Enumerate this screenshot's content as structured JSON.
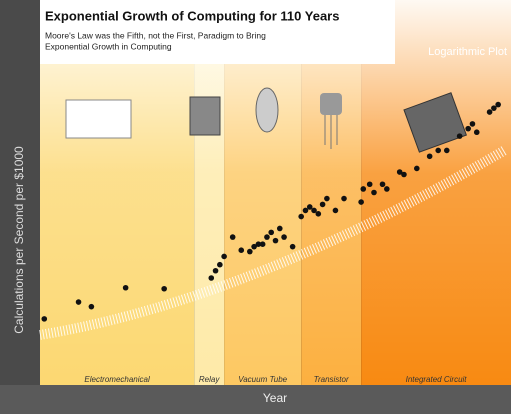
{
  "chart_data": {
    "type": "scatter",
    "title": "Exponential Growth of Computing for 110 Years",
    "subtitle": [
      "Moore's Law was the Fifth, not the First, Paradigm to Bring",
      "Exponential Growth in Computing"
    ],
    "note": "Logarithmic Plot",
    "x_label": "Year",
    "y_label": "Calculations per Second per $1000",
    "xlim": [
      1900,
      2010
    ],
    "ylim": [
      1e-06,
      10000000000
    ],
    "log_scale_y": true,
    "color": "#111111",
    "paradigms": [
      {
        "name": "Electromechanical",
        "start": 1900,
        "end": 1936,
        "color": "#fcd872"
      },
      {
        "name": "Relay",
        "start": 1936,
        "end": 1943,
        "color": "#feeaa8"
      },
      {
        "name": "Vacuum Tube",
        "start": 1943,
        "end": 1961,
        "color": "#fdc862"
      },
      {
        "name": "Transistor",
        "start": 1961,
        "end": 1975,
        "color": "#fcb040"
      },
      {
        "name": "Integrated Circuit",
        "start": 1975,
        "end": 2010,
        "color": "#f88a12"
      }
    ],
    "x": [
      1901,
      1909,
      1912,
      1920,
      1929,
      1940,
      1941,
      1942,
      1943,
      1945,
      1947,
      1949,
      1950,
      1951,
      1952,
      1953,
      1954,
      1955,
      1956,
      1957,
      1959,
      1961,
      1962,
      1963,
      1964,
      1965,
      1966,
      1967,
      1969,
      1971,
      1975,
      1975.5,
      1977,
      1978,
      1980,
      1981,
      1984,
      1985,
      1988,
      1991,
      1993,
      1995,
      1998,
      2000,
      2001,
      2002,
      2005,
      2006,
      2007
    ],
    "values": [
      0.00056,
      0.0028,
      0.0018,
      0.011,
      0.01,
      0.028,
      0.056,
      0.1,
      0.22,
      1.4,
      0.4,
      0.35,
      0.56,
      0.71,
      0.71,
      1.4,
      2.2,
      1,
      3.2,
      1.4,
      0.56,
      10,
      18,
      25,
      18,
      13,
      32,
      56,
      18,
      56,
      40,
      140,
      220,
      100,
      220,
      140,
      710,
      560,
      1000,
      3200,
      5600,
      5600,
      22000,
      45000,
      71000,
      32000,
      220000,
      320000,
      450000
    ]
  }
}
